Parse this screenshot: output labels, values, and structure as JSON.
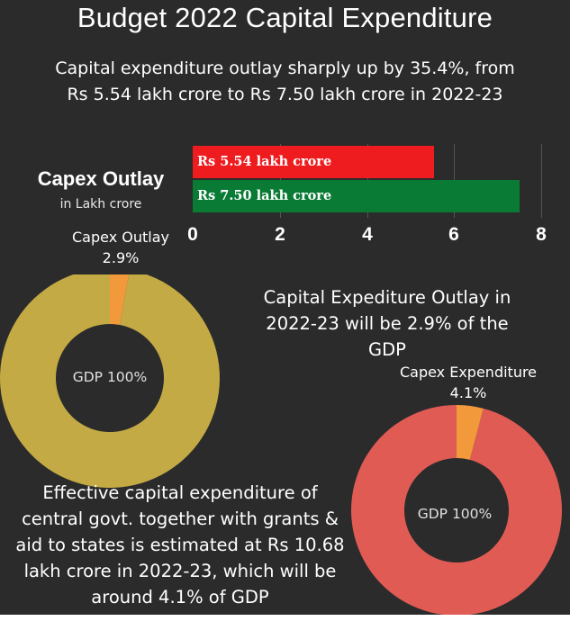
{
  "title": "Budget 2022 Capital Expenditure",
  "subtitle_lines": [
    "Capital expenditure outlay sharply up by 35.4%, from",
    "Rs 5.54 lakh crore to Rs 7.50 lakh crore in 2022-23"
  ],
  "colors": {
    "background": "#2b2b2b",
    "bar_red": "#ee1c1f",
    "bar_green": "#0a7b34",
    "gold": "#c3aa44",
    "orange": "#f29a3b",
    "salmon": "#e15b55",
    "label_gold": "#ddb55a"
  },
  "chart_data": [
    {
      "type": "bar",
      "orientation": "horizontal",
      "title": "Capex Outlay",
      "subtitle": "in Lakh crore",
      "bars": [
        {
          "label": "Rs 5.54 lakh crore",
          "value": 5.54,
          "color": "#ee1c1f"
        },
        {
          "label": "Rs 7.50 lakh crore",
          "value": 7.5,
          "color": "#0a7b34"
        }
      ],
      "xlim": [
        0,
        8
      ],
      "xticks": [
        "0",
        "2",
        "4",
        "6",
        "8"
      ],
      "grid": true
    },
    {
      "type": "pie",
      "style": "donut",
      "center_label": "GDP 100%",
      "slices": [
        {
          "label": "Capex Outlay",
          "value": 2.9,
          "value_label": "2.9%",
          "color": "#f29a3b"
        },
        {
          "label": "GDP 100%",
          "value": 97.1,
          "color": "#c3aa44"
        }
      ],
      "annotation_lines": [
        "Capital Expediture Outlay in",
        "2022-23 will be 2.9% of the",
        "GDP"
      ]
    },
    {
      "type": "pie",
      "style": "donut",
      "center_label": "GDP 100%",
      "slices": [
        {
          "label": "Capex Expenditure",
          "value": 4.1,
          "value_label": "4.1%",
          "color": "#f29a3b"
        },
        {
          "label": "GDP 100%",
          "value": 95.9,
          "color": "#e15b55"
        }
      ],
      "annotation_lines": [
        "Effective capital expenditure of",
        "central govt. together with grants &",
        "aid to states is estimated at Rs 10.68",
        "lakh crore in 2022-23, which will be",
        "around 4.1% of GDP"
      ]
    }
  ]
}
